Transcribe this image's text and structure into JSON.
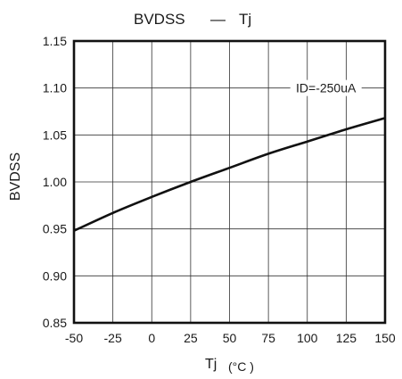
{
  "chart_data": {
    "type": "line",
    "title_main": "BVDSS",
    "title_dash": "—",
    "title_right": "Tj",
    "xlabel": "Tj",
    "xlabel_unit": "(°C )",
    "ylabel": "BVDSS",
    "annotation": "ID=-250uA",
    "xlim": [
      -50,
      150
    ],
    "ylim": [
      0.85,
      1.15
    ],
    "grid": true,
    "x_ticks": [
      -50,
      -25,
      0,
      25,
      50,
      75,
      100,
      125,
      150
    ],
    "x_tick_labels": [
      "-50",
      "-25",
      "0",
      "25",
      "50",
      "75",
      "100",
      "125",
      "150"
    ],
    "y_ticks": [
      0.85,
      0.9,
      0.95,
      1.0,
      1.05,
      1.1,
      1.15
    ],
    "y_tick_labels": [
      "0.85",
      "0.90",
      "0.95",
      "1.00",
      "1.05",
      "1.10",
      "1.15"
    ],
    "series": [
      {
        "x": [
          -50,
          -25,
          0,
          25,
          50,
          75,
          100,
          125,
          150
        ],
        "y": [
          0.948,
          0.967,
          0.984,
          1.0,
          1.015,
          1.03,
          1.043,
          1.056,
          1.068
        ]
      }
    ]
  }
}
